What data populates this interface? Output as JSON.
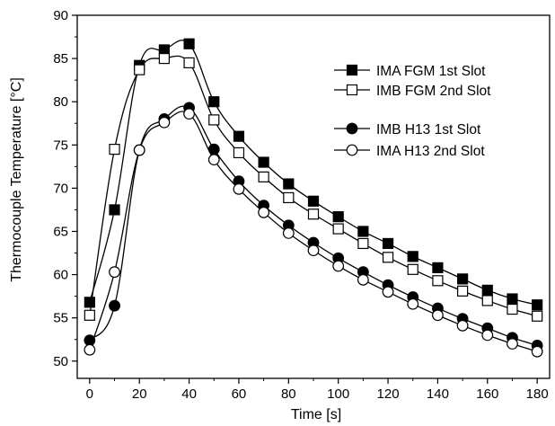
{
  "chart_data": {
    "type": "line",
    "xlabel": "Time [s]",
    "ylabel": "Thermocouple Temperature [°C]",
    "xlim": [
      -5,
      185
    ],
    "ylim": [
      48,
      90
    ],
    "xticks": [
      0,
      20,
      40,
      60,
      80,
      100,
      120,
      140,
      160,
      180
    ],
    "yticks": [
      50,
      55,
      60,
      65,
      70,
      75,
      80,
      85,
      90
    ],
    "grid": false,
    "legend_position": "top-right",
    "series": [
      {
        "name": "IMA FGM 1st Slot",
        "marker": "square",
        "filled": true,
        "x": [
          0,
          10,
          20,
          30,
          40,
          50,
          60,
          70,
          80,
          90,
          100,
          110,
          120,
          130,
          140,
          150,
          160,
          170,
          180
        ],
        "values": [
          56.8,
          67.5,
          84.2,
          86.0,
          86.7,
          80.0,
          76.0,
          73.0,
          70.5,
          68.5,
          66.7,
          65.0,
          63.6,
          62.1,
          60.8,
          59.5,
          58.2,
          57.2,
          56.5
        ]
      },
      {
        "name": "IMB FGM 2nd Slot",
        "marker": "square",
        "filled": false,
        "x": [
          0,
          10,
          20,
          30,
          40,
          50,
          60,
          70,
          80,
          90,
          100,
          110,
          120,
          130,
          140,
          150,
          160,
          170,
          180
        ],
        "values": [
          55.3,
          74.5,
          83.7,
          85.0,
          84.5,
          77.9,
          74.1,
          71.3,
          68.9,
          67.0,
          65.3,
          63.6,
          62.0,
          60.6,
          59.3,
          58.1,
          57.0,
          56.0,
          55.2
        ]
      },
      {
        "name": "IMB H13 1st Slot",
        "marker": "circle",
        "filled": true,
        "x": [
          0,
          10,
          20,
          30,
          40,
          50,
          60,
          70,
          80,
          90,
          100,
          110,
          120,
          130,
          140,
          150,
          160,
          170,
          180
        ],
        "values": [
          52.4,
          56.4,
          74.4,
          78.0,
          79.3,
          74.5,
          70.8,
          68.0,
          65.7,
          63.7,
          61.9,
          60.3,
          58.8,
          57.4,
          56.1,
          54.9,
          53.8,
          52.7,
          51.8
        ]
      },
      {
        "name": "IMA H13 2nd Slot",
        "marker": "circle",
        "filled": false,
        "x": [
          0,
          10,
          20,
          30,
          40,
          50,
          60,
          70,
          80,
          90,
          100,
          110,
          120,
          130,
          140,
          150,
          160,
          170,
          180
        ],
        "values": [
          51.3,
          60.3,
          74.4,
          77.6,
          78.6,
          73.3,
          69.9,
          67.2,
          64.8,
          62.8,
          61.0,
          59.4,
          58.0,
          56.6,
          55.3,
          54.1,
          53.0,
          52.0,
          51.1
        ]
      }
    ]
  }
}
